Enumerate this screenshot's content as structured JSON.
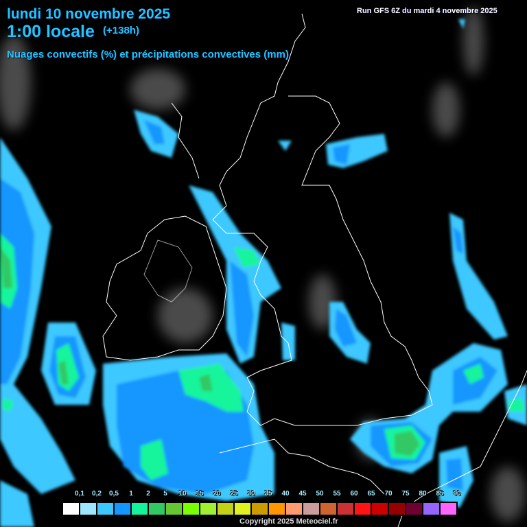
{
  "header": {
    "date": "lundi 10 novembre 2025",
    "hour": "1:00 locale",
    "lead": "(+138h)",
    "parameter": "Nuages convectifs (%) et précipitations convectives (mm)",
    "run": "Run GFS 6Z du mardi 4 novembre 2025"
  },
  "legend": {
    "labels": [
      "0,1",
      "0,2",
      "0,5",
      "1",
      "2",
      "5",
      "10",
      "15",
      "20",
      "25",
      "30",
      "35",
      "40",
      "45",
      "50",
      "55",
      "60",
      "65",
      "70",
      "75",
      "80",
      "85",
      "90"
    ],
    "colors": [
      "#ffffff",
      "#9ee6ff",
      "#3cc8ff",
      "#1496ff",
      "#14f59b",
      "#32c864",
      "#64c832",
      "#78ff00",
      "#a0f032",
      "#c3d214",
      "#e1f01e",
      "#cd9b00",
      "#ff9600",
      "#ff9b6e",
      "#cd9b9b",
      "#cd6432",
      "#cd3232",
      "#ff1414",
      "#cd0000",
      "#960000",
      "#6e0032",
      "#9664ff",
      "#ff64ff"
    ]
  },
  "footer": {
    "copyright": "Copyright 2025 Meteociel.fr"
  }
}
